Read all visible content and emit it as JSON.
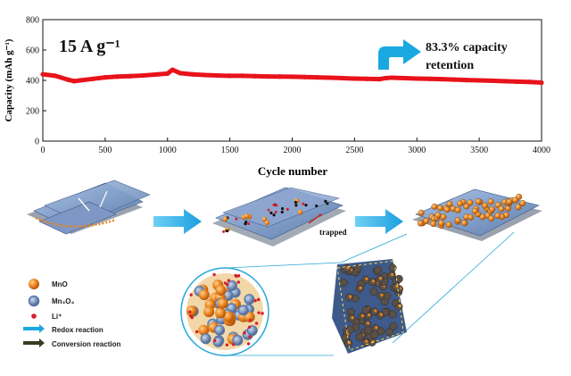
{
  "chart_data": {
    "type": "line",
    "title": "",
    "xlabel": "Cycle number",
    "ylabel": "Capacity (mAh g⁻¹)",
    "xlim": [
      0,
      4000
    ],
    "ylim": [
      0,
      800
    ],
    "xticks": [
      0,
      500,
      1000,
      1500,
      2000,
      2500,
      3000,
      3500,
      4000
    ],
    "yticks": [
      0,
      200,
      400,
      600,
      800
    ],
    "grid": false,
    "legend": "none",
    "series": [
      {
        "color": "#e8131b",
        "x": [
          0,
          100,
          200,
          250,
          300,
          400,
          500,
          600,
          700,
          800,
          900,
          1000,
          1040,
          1100,
          1200,
          1300,
          1400,
          1500,
          1600,
          1700,
          1800,
          1900,
          2000,
          2100,
          2200,
          2300,
          2400,
          2500,
          2600,
          2700,
          2750,
          2800,
          2900,
          3000,
          3100,
          3200,
          3300,
          3400,
          3500,
          3600,
          3700,
          3800,
          3900,
          4000
        ],
        "y": [
          440,
          430,
          405,
          395,
          400,
          410,
          420,
          425,
          428,
          432,
          438,
          445,
          470,
          448,
          440,
          435,
          432,
          430,
          430,
          428,
          426,
          425,
          424,
          422,
          420,
          418,
          415,
          412,
          410,
          408,
          415,
          418,
          415,
          412,
          410,
          408,
          405,
          402,
          400,
          398,
          395,
          392,
          390,
          385
        ]
      }
    ],
    "annotations": {
      "rate_label": "15 A g⁻¹",
      "retention_line1": "83.3% capacity",
      "retention_line2": "retention"
    }
  },
  "schematic": {
    "trapped_label": "trapped",
    "legend": [
      {
        "label": "MnO",
        "icon": "orange-sphere",
        "color": "#e8821e"
      },
      {
        "label": "Mn₃O₄",
        "icon": "blue-ring-sphere",
        "color": "#5878a8"
      },
      {
        "label": "Li⁺",
        "icon": "red-dot",
        "color": "#d81e2a"
      },
      {
        "label": "Redox reaction",
        "icon": "cyan-arrow",
        "color": "#1aa8e0"
      },
      {
        "label": "Conversion reaction",
        "icon": "dark-arrow",
        "color": "#3a3a20"
      }
    ]
  }
}
